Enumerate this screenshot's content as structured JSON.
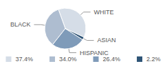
{
  "chart_data": {
    "type": "pie",
    "categories": [
      "WHITE",
      "BLACK",
      "HISPANIC",
      "ASIAN"
    ],
    "values": [
      37.4,
      34.0,
      26.4,
      2.2
    ],
    "value_labels": [
      "37.4%",
      "34.0%",
      "26.4%",
      "2.2%"
    ],
    "colors": [
      "#d5dde7",
      "#aebdd0",
      "#7f9bb9",
      "#2f5577"
    ],
    "legend": "bottom"
  }
}
